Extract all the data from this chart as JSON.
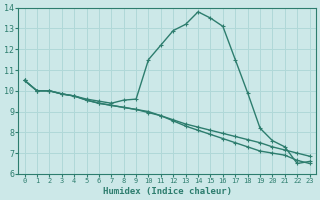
{
  "x": [
    0,
    1,
    2,
    3,
    4,
    5,
    6,
    7,
    8,
    9,
    10,
    11,
    12,
    13,
    14,
    15,
    16,
    17,
    18,
    19,
    20,
    21,
    22,
    23
  ],
  "line1": [
    10.5,
    10.0,
    10.0,
    9.85,
    9.75,
    9.6,
    9.5,
    9.4,
    9.55,
    9.6,
    11.5,
    12.2,
    12.9,
    13.2,
    13.8,
    13.5,
    13.1,
    11.5,
    9.9,
    8.2,
    7.6,
    7.3,
    6.5,
    6.6
  ],
  "line2": [
    10.5,
    10.0,
    10.0,
    9.85,
    9.75,
    9.55,
    9.4,
    9.3,
    9.2,
    9.1,
    8.95,
    8.8,
    8.6,
    8.4,
    8.25,
    8.1,
    7.95,
    7.8,
    7.65,
    7.5,
    7.3,
    7.15,
    7.0,
    6.85
  ],
  "line3": [
    10.5,
    10.0,
    10.0,
    9.85,
    9.75,
    9.55,
    9.4,
    9.3,
    9.2,
    9.1,
    9.0,
    8.8,
    8.55,
    8.3,
    8.1,
    7.9,
    7.7,
    7.5,
    7.3,
    7.1,
    7.0,
    6.9,
    6.65,
    6.5
  ],
  "line_color": "#2d7d6e",
  "bg_color": "#cce8e8",
  "grid_color": "#b0d8d8",
  "xlabel": "Humidex (Indice chaleur)",
  "xlim": [
    -0.5,
    23.5
  ],
  "ylim": [
    6,
    14
  ],
  "yticks": [
    6,
    7,
    8,
    9,
    10,
    11,
    12,
    13,
    14
  ],
  "xticks": [
    0,
    1,
    2,
    3,
    4,
    5,
    6,
    7,
    8,
    9,
    10,
    11,
    12,
    13,
    14,
    15,
    16,
    17,
    18,
    19,
    20,
    21,
    22,
    23
  ],
  "marker": "+",
  "marker_size": 3,
  "line_width": 1.0
}
